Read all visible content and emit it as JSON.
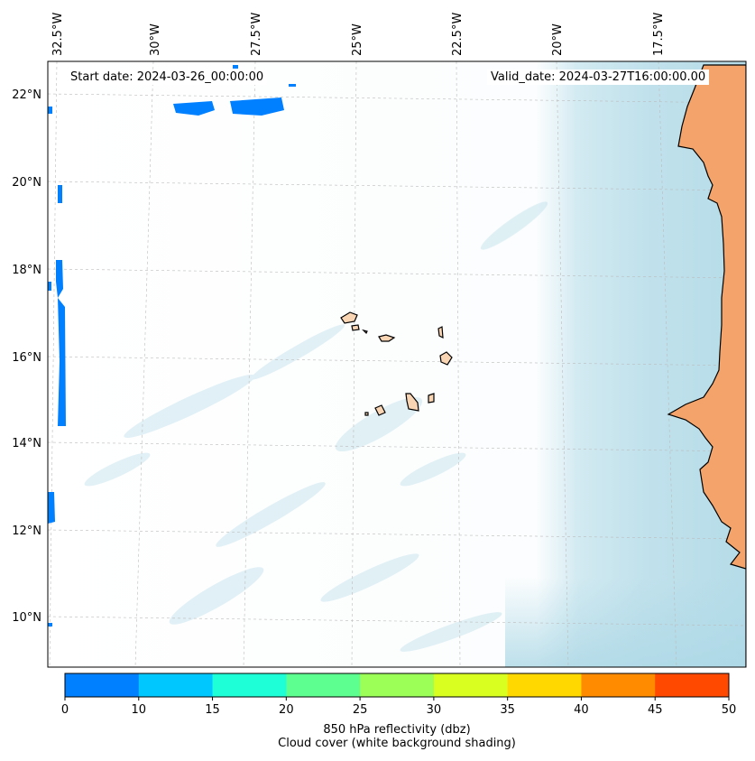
{
  "map": {
    "start_label": "Start date: 2024-03-26_00:00:00",
    "valid_label": "Valid_date: 2024-03-27T16:00:00.00",
    "lon_ticks": [
      "32.5°W",
      "30°W",
      "27.5°W",
      "25°W",
      "22.5°W",
      "20°W",
      "17.5°W"
    ],
    "lat_ticks": [
      "22°N",
      "20°N",
      "18°N",
      "16°N",
      "14°N",
      "12°N",
      "10°N"
    ],
    "features": [
      "Cape Verde islands",
      "West African coastline"
    ],
    "colors": {
      "land": "#f4a46a",
      "island": "#f9d5b4",
      "cloud": "#add8e6",
      "reflectivity_low": "#0080ff"
    }
  },
  "colorbar": {
    "ticks": [
      "0",
      "10",
      "15",
      "20",
      "25",
      "30",
      "35",
      "40",
      "45",
      "50"
    ],
    "colors": [
      "#0080ff",
      "#00c8ff",
      "#1effd8",
      "#5cff90",
      "#9cff58",
      "#d8ff20",
      "#ffd800",
      "#ff8c00",
      "#ff4800"
    ],
    "label_line1": "850 hPa reflectivity (dbz)",
    "label_line2": "Cloud cover (white background shading)"
  }
}
